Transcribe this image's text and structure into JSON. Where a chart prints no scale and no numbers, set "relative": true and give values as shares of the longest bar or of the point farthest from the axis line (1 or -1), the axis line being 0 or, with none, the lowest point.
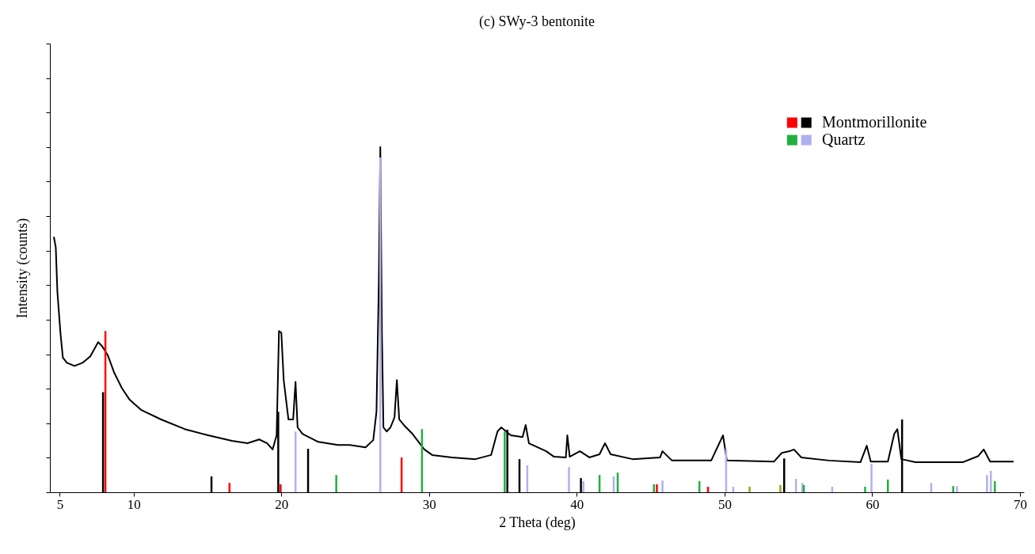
{
  "chart_data": {
    "type": "line",
    "title": "(c) SWy-3 bentonite",
    "xlabel": "2 Theta (deg)",
    "ylabel": "Intensity (counts)",
    "relative": true,
    "xlim": [
      4.6,
      70
    ],
    "xticks": [
      5,
      10,
      20,
      30,
      40,
      50,
      60,
      70
    ],
    "tick_labels": "x",
    "grid": false,
    "legend": "top right",
    "marker": "none",
    "line_style": "solid",
    "series": [
      {
        "color": "#000000",
        "x": [
          4.6,
          4.73,
          4.84,
          5.05,
          5.21,
          5.48,
          6.0,
          6.54,
          7.07,
          7.6,
          7.87,
          8.24,
          8.67,
          9.2,
          9.73,
          10.53,
          11.86,
          13.46,
          15.05,
          16.65,
          17.71,
          18.5,
          19.04,
          19.41,
          19.68,
          19.84,
          20.0,
          20.16,
          20.48,
          20.8,
          20.96,
          21.1,
          21.44,
          22.5,
          23.83,
          24.63,
          25.7,
          26.22,
          26.44,
          26.6,
          26.7,
          26.81,
          26.91,
          27.13,
          27.39,
          27.66,
          27.82,
          27.98,
          28.35,
          28.88,
          29.68,
          30.21,
          31.54,
          33.14,
          34.2,
          34.63,
          34.89,
          35.53,
          36.33,
          36.54,
          36.76,
          37.93,
          38.46,
          39.26,
          39.36,
          39.52,
          40.21,
          40.85,
          41.54,
          41.91,
          42.29,
          43.78,
          45.64,
          45.8,
          46.44,
          49.1,
          49.9,
          50.16,
          53.35,
          53.88,
          54.41,
          54.7,
          55.2,
          57.07,
          59.2,
          59.63,
          59.9,
          61.06,
          61.49,
          61.7,
          61.97,
          62.93,
          66.12,
          67.18,
          67.55,
          67.98,
          69.57
        ],
        "values": [
          0.74,
          0.71,
          0.58,
          0.46,
          0.39,
          0.375,
          0.366,
          0.375,
          0.394,
          0.435,
          0.423,
          0.398,
          0.348,
          0.302,
          0.268,
          0.238,
          0.211,
          0.183,
          0.165,
          0.149,
          0.142,
          0.153,
          0.142,
          0.124,
          0.165,
          0.467,
          0.462,
          0.325,
          0.211,
          0.211,
          0.32,
          0.188,
          0.169,
          0.146,
          0.137,
          0.137,
          0.13,
          0.151,
          0.233,
          0.611,
          1.0,
          0.458,
          0.188,
          0.176,
          0.188,
          0.217,
          0.325,
          0.211,
          0.192,
          0.169,
          0.124,
          0.108,
          0.101,
          0.096,
          0.108,
          0.176,
          0.188,
          0.165,
          0.16,
          0.195,
          0.142,
          0.119,
          0.103,
          0.101,
          0.165,
          0.103,
          0.119,
          0.101,
          0.11,
          0.142,
          0.11,
          0.096,
          0.101,
          0.119,
          0.092,
          0.092,
          0.165,
          0.092,
          0.089,
          0.114,
          0.119,
          0.124,
          0.101,
          0.092,
          0.087,
          0.135,
          0.089,
          0.089,
          0.169,
          0.183,
          0.096,
          0.087,
          0.087,
          0.105,
          0.124,
          0.089,
          0.089
        ]
      },
      {
        "type": "bar",
        "color": "#a0a020",
        "x": [
          51.7,
          53.78
        ],
        "values": [
          0.016,
          0.021
        ]
      },
      {
        "type": "bar",
        "name": "Montmorillonite",
        "color": "#000000",
        "x": [
          7.93,
          15.27,
          19.79,
          21.81,
          35.3,
          36.12,
          40.28,
          54.04,
          62.02
        ],
        "values": [
          0.29,
          0.046,
          0.233,
          0.126,
          0.181,
          0.096,
          0.041,
          0.098,
          0.211
        ]
      },
      {
        "type": "bar",
        "color": "#ff0000",
        "x": [
          8.09,
          16.49,
          19.95,
          28.14,
          45.42,
          48.88
        ],
        "values": [
          0.467,
          0.027,
          0.023,
          0.101,
          0.023,
          0.016
        ]
      },
      {
        "type": "bar",
        "name": "Quartz",
        "color": "#b0b0f0",
        "x": [
          20.96,
          26.7,
          36.65,
          39.47,
          40.45,
          42.5,
          45.8,
          50.11,
          50.59,
          54.84,
          55.27,
          57.29,
          59.95,
          63.99,
          65.74,
          67.77,
          68.03
        ],
        "values": [
          0.176,
          0.97,
          0.078,
          0.073,
          0.032,
          0.046,
          0.034,
          0.126,
          0.016,
          0.039,
          0.027,
          0.016,
          0.082,
          0.027,
          0.018,
          0.05,
          0.062
        ]
      },
      {
        "type": "bar",
        "color": "#20b040",
        "x": [
          23.72,
          29.52,
          35.12,
          41.54,
          42.77,
          45.22,
          48.3,
          55.37,
          59.52,
          61.06,
          65.48,
          68.3
        ],
        "values": [
          0.05,
          0.183,
          0.176,
          0.05,
          0.057,
          0.023,
          0.032,
          0.021,
          0.016,
          0.037,
          0.018,
          0.032
        ]
      }
    ]
  }
}
